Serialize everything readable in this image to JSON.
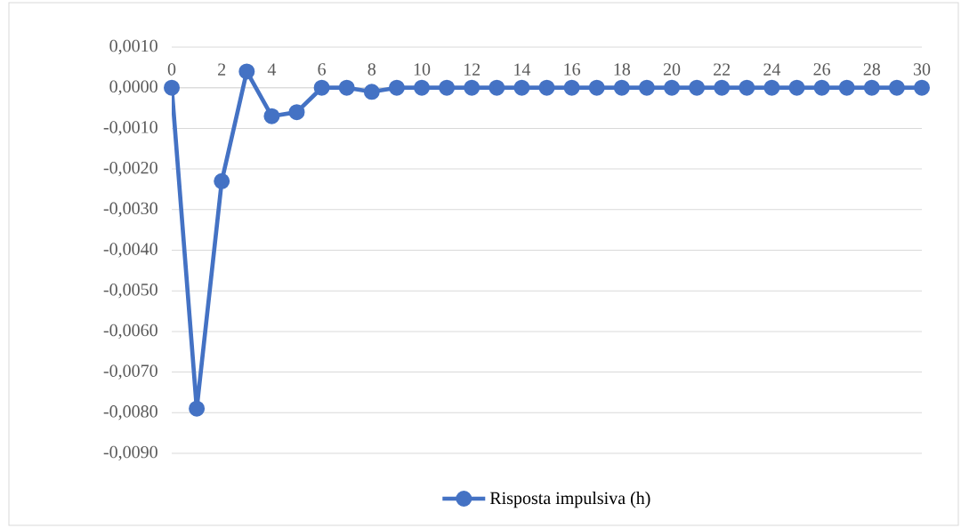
{
  "chart_data": {
    "type": "line",
    "x": [
      0,
      1,
      2,
      3,
      4,
      5,
      6,
      7,
      8,
      9,
      10,
      11,
      12,
      13,
      14,
      15,
      16,
      17,
      18,
      19,
      20,
      21,
      22,
      23,
      24,
      25,
      26,
      27,
      28,
      29,
      30
    ],
    "series": [
      {
        "name": "Risposta impulsiva (h)",
        "color": "#4472c4",
        "values": [
          0,
          -0.0079,
          -0.0023,
          0.0004,
          -0.0007,
          -0.0006,
          0,
          0,
          -0.0001,
          0,
          0,
          0,
          0,
          0,
          0,
          0,
          0,
          0,
          0,
          0,
          0,
          0,
          0,
          0,
          0,
          0,
          0,
          0,
          0,
          0,
          0
        ]
      }
    ],
    "xlim": [
      0,
      30
    ],
    "xticks": [
      0,
      2,
      4,
      6,
      8,
      10,
      12,
      14,
      16,
      18,
      20,
      22,
      24,
      26,
      28,
      30
    ],
    "ylim": [
      -0.009,
      0.001
    ],
    "yticks": [
      {
        "value": 0.001,
        "label": "0,0010"
      },
      {
        "value": 0,
        "label": "0,0000"
      },
      {
        "value": -0.001,
        "label": "-0,0010"
      },
      {
        "value": -0.002,
        "label": "-0,0020"
      },
      {
        "value": -0.003,
        "label": "-0,0030"
      },
      {
        "value": -0.004,
        "label": "-0,0040"
      },
      {
        "value": -0.005,
        "label": "-0,0050"
      },
      {
        "value": -0.006,
        "label": "-0,0060"
      },
      {
        "value": -0.007,
        "label": "-0,0070"
      },
      {
        "value": -0.008,
        "label": "-0,0080"
      },
      {
        "value": -0.009,
        "label": "-0,0090"
      }
    ],
    "grid": "y",
    "legend": "bottom",
    "marker": "circle",
    "line_style": "solid"
  }
}
